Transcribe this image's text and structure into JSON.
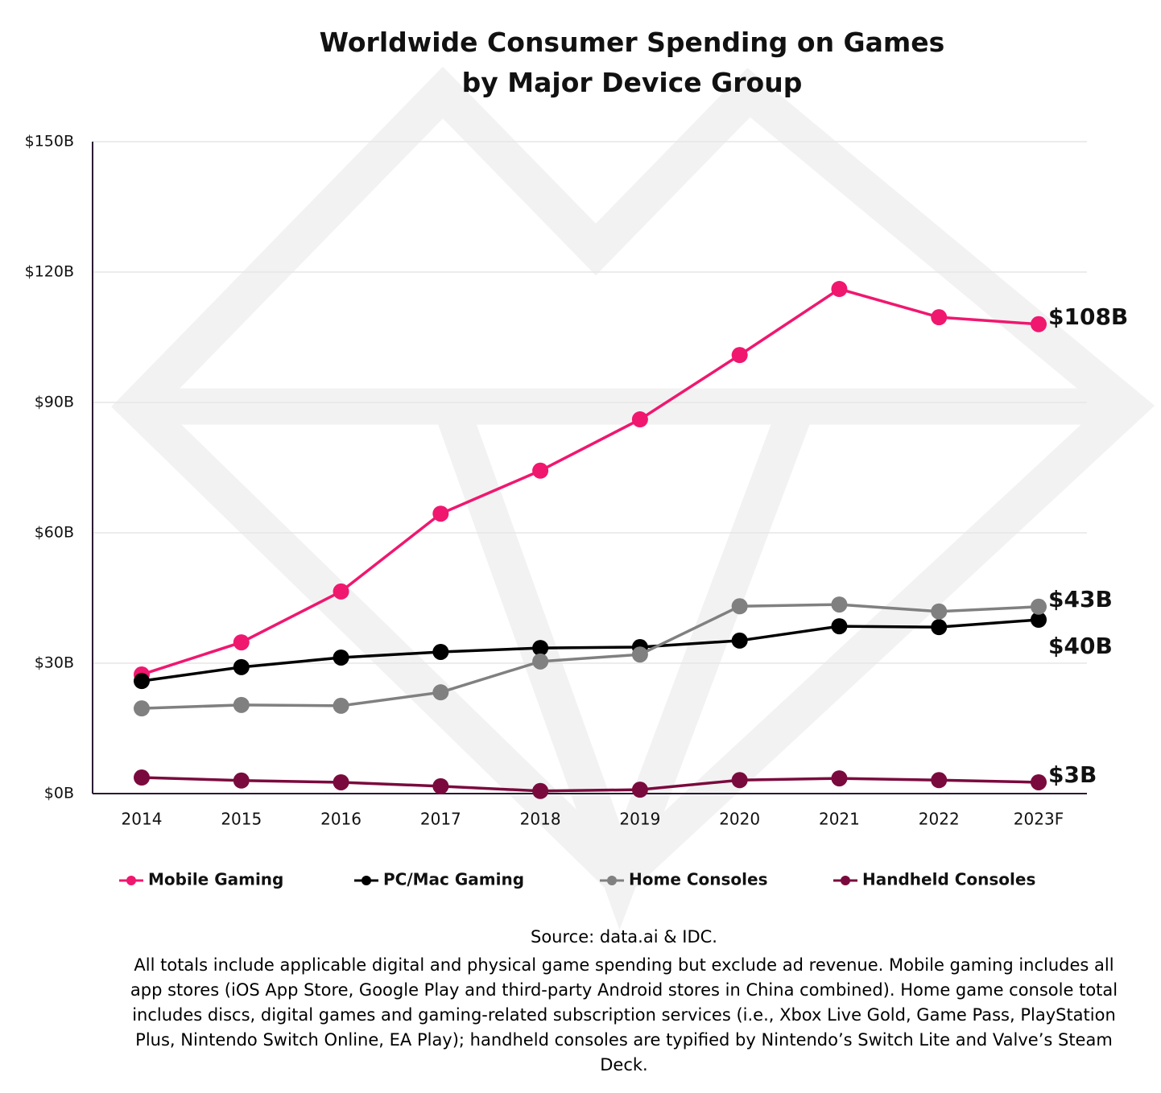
{
  "chart_data": {
    "type": "line",
    "title": "Worldwide Consumer Spending on Games\nby Major Device Group",
    "categories": [
      "2014",
      "2015",
      "2016",
      "2017",
      "2018",
      "2019",
      "2020",
      "2021",
      "2022",
      "2023F"
    ],
    "series": [
      {
        "name": "Mobile Gaming",
        "color": "#f0176f",
        "values": [
          27.4,
          34.8,
          46.5,
          64.4,
          74.3,
          86.1,
          100.9,
          116.1,
          109.6,
          108
        ],
        "value_labels": [
          null,
          null,
          null,
          null,
          null,
          null,
          null,
          null,
          null,
          "$108B"
        ]
      },
      {
        "name": "PC/Mac Gaming",
        "color": "#000000",
        "values": [
          25.9,
          29.1,
          31.3,
          32.6,
          33.5,
          33.7,
          35.2,
          38.5,
          38.3,
          40
        ],
        "value_labels": [
          null,
          null,
          null,
          null,
          null,
          null,
          null,
          null,
          null,
          "$40B"
        ]
      },
      {
        "name": "Home Consoles",
        "color": "#808080",
        "values": [
          19.6,
          20.4,
          20.2,
          23.3,
          30.4,
          32,
          43.1,
          43.5,
          41.9,
          43
        ],
        "value_labels": [
          null,
          null,
          null,
          null,
          null,
          null,
          null,
          null,
          null,
          "$43B"
        ]
      },
      {
        "name": "Handheld Consoles",
        "color": "#7a0a3d",
        "values": [
          3.7,
          3.0,
          2.6,
          1.7,
          0.6,
          0.9,
          3.1,
          3.5,
          3.1,
          2.6
        ],
        "value_labels": [
          null,
          null,
          null,
          null,
          null,
          null,
          null,
          null,
          null,
          "$3B"
        ]
      }
    ],
    "ylim": [
      0,
      150
    ],
    "yticks": [
      {
        "value": 0,
        "label": "$0B"
      },
      {
        "value": 30,
        "label": "$30B"
      },
      {
        "value": 60,
        "label": "$60B"
      },
      {
        "value": 90,
        "label": "$90B"
      },
      {
        "value": 120,
        "label": "$120B"
      },
      {
        "value": 150,
        "label": "$150B"
      }
    ],
    "grid": true,
    "source": "Source: data.ai & IDC.",
    "note": "All totals include applicable digital and physical game spending but exclude ad revenue. Mobile gaming includes all app stores (iOS App Store, Google Play and third-party Android stores in China combined). Home game console total includes discs, digital games and gaming-related subscription services (i.e., Xbox Live Gold, Game Pass, PlayStation Plus, Nintendo Switch Online, EA Play); handheld consoles are typified by Nintendo’s Switch Lite and Valve’s Steam Deck."
  }
}
